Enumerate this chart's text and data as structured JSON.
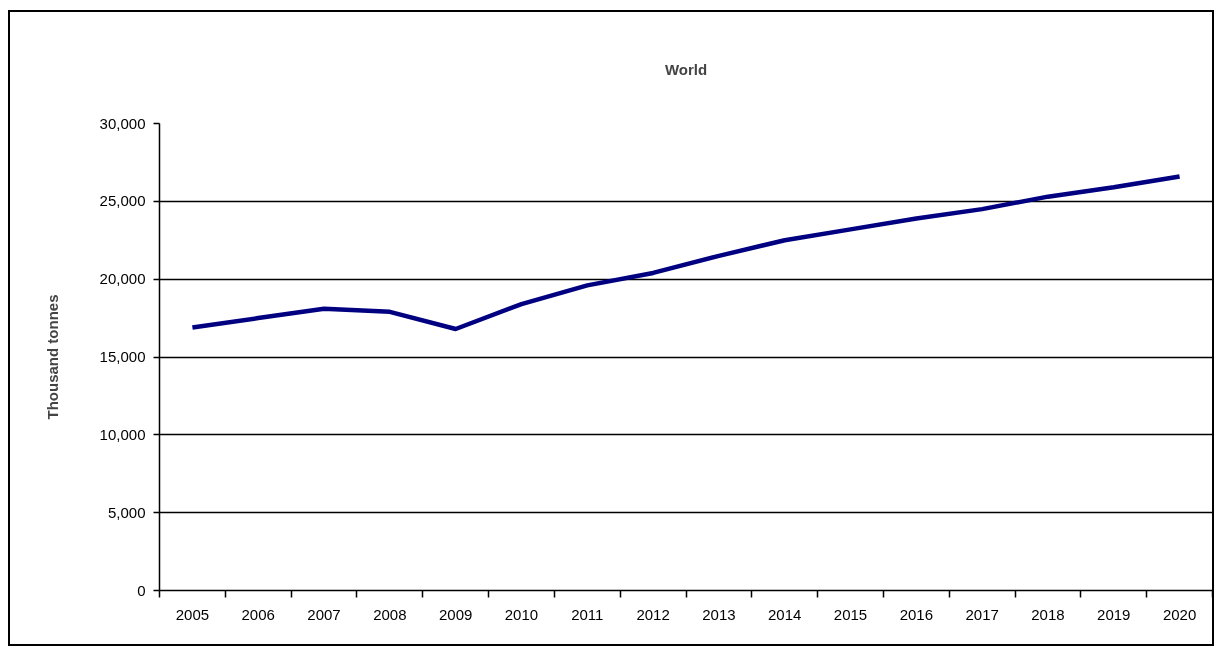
{
  "chart_data": {
    "type": "line",
    "title": "World",
    "ylabel": "Thousand tonnes",
    "categories": [
      "2005",
      "2006",
      "2007",
      "2008",
      "2009",
      "2010",
      "2011",
      "2012",
      "2013",
      "2014",
      "2015",
      "2016",
      "2017",
      "2018",
      "2019",
      "2020"
    ],
    "series": [
      {
        "color": "#000080",
        "values": [
          16900,
          17500,
          18100,
          17900,
          16800,
          18400,
          19600,
          20400,
          21500,
          22500,
          23200,
          23900,
          24500,
          25300,
          25900,
          26600
        ]
      }
    ],
    "ylim": [
      0,
      30000
    ],
    "yticks": [
      0,
      {
        "value": 5000,
        "label": "5,000"
      },
      {
        "value": 10000,
        "label": "10,000"
      },
      {
        "value": 15000,
        "label": "15,000"
      },
      {
        "value": 20000,
        "label": "20,000"
      },
      {
        "value": 25000,
        "label": "25,000"
      },
      {
        "value": 30000,
        "label": "30,000"
      }
    ],
    "grid": "y",
    "line_style": "solid"
  }
}
